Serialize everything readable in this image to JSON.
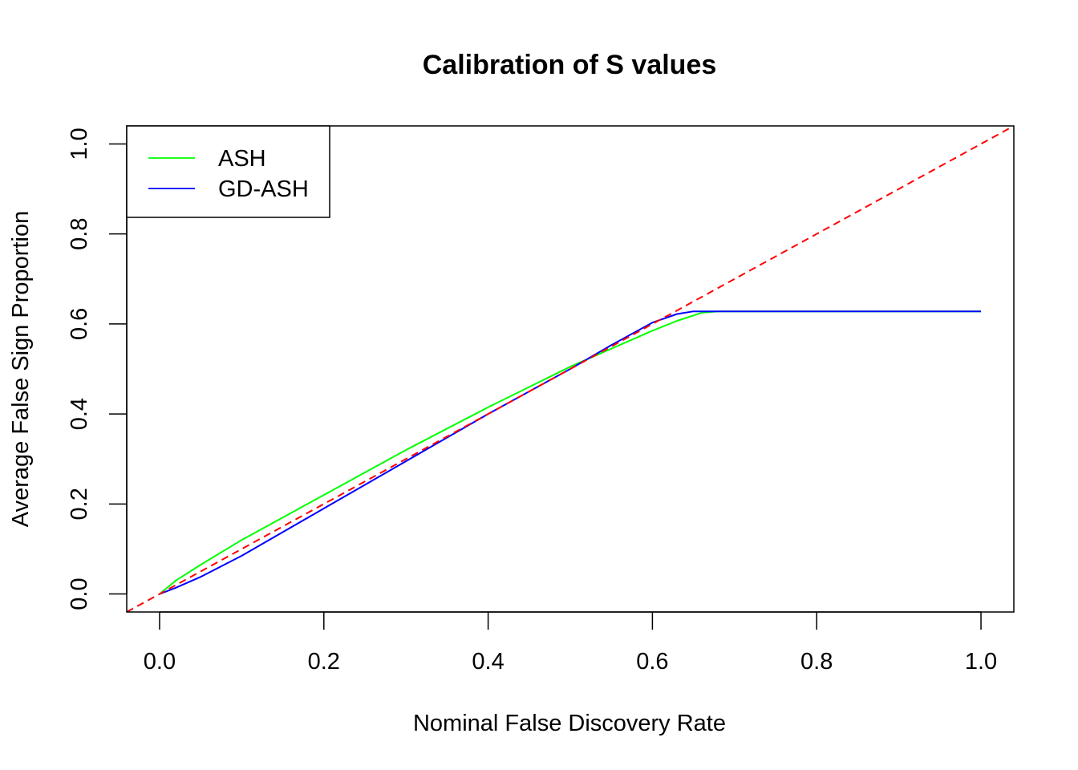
{
  "chart_data": {
    "type": "line",
    "title": "Calibration of S values",
    "xlabel": "Nominal False Discovery Rate",
    "ylabel": "Average False Sign Proportion",
    "xlim": [
      -0.04,
      1.04
    ],
    "ylim": [
      -0.04,
      1.04
    ],
    "x_ticks": [
      0.0,
      0.2,
      0.4,
      0.6,
      0.8,
      1.0
    ],
    "x_tick_labels": [
      "0.0",
      "0.2",
      "0.4",
      "0.6",
      "0.8",
      "1.0"
    ],
    "y_ticks": [
      0.0,
      0.2,
      0.4,
      0.6,
      0.8,
      1.0
    ],
    "y_tick_labels": [
      "0.0",
      "0.2",
      "0.4",
      "0.6",
      "0.8",
      "1.0"
    ],
    "grid": false,
    "legend_position": "top-left",
    "series": [
      {
        "name": "ASH",
        "color": "#00ff00",
        "x": [
          0.0,
          0.02,
          0.05,
          0.1,
          0.2,
          0.3,
          0.4,
          0.5,
          0.55,
          0.6,
          0.63,
          0.66,
          0.68,
          0.7,
          0.8,
          0.9,
          1.0
        ],
        "y": [
          0.0,
          0.03,
          0.065,
          0.12,
          0.22,
          0.32,
          0.415,
          0.505,
          0.545,
          0.585,
          0.607,
          0.625,
          0.628,
          0.628,
          0.628,
          0.628,
          0.628
        ]
      },
      {
        "name": "GD-ASH",
        "color": "#0000ff",
        "x": [
          0.0,
          0.02,
          0.05,
          0.1,
          0.2,
          0.3,
          0.4,
          0.5,
          0.55,
          0.6,
          0.63,
          0.65,
          0.67,
          0.7,
          0.8,
          0.9,
          1.0
        ],
        "y": [
          0.0,
          0.014,
          0.038,
          0.085,
          0.19,
          0.295,
          0.4,
          0.5,
          0.553,
          0.603,
          0.622,
          0.628,
          0.628,
          0.628,
          0.628,
          0.628,
          0.628
        ]
      }
    ],
    "reference_line": {
      "description": "y = x",
      "color": "#ff0000",
      "style": "dashed",
      "x": [
        -0.04,
        1.04
      ],
      "y": [
        -0.04,
        1.04
      ]
    }
  }
}
